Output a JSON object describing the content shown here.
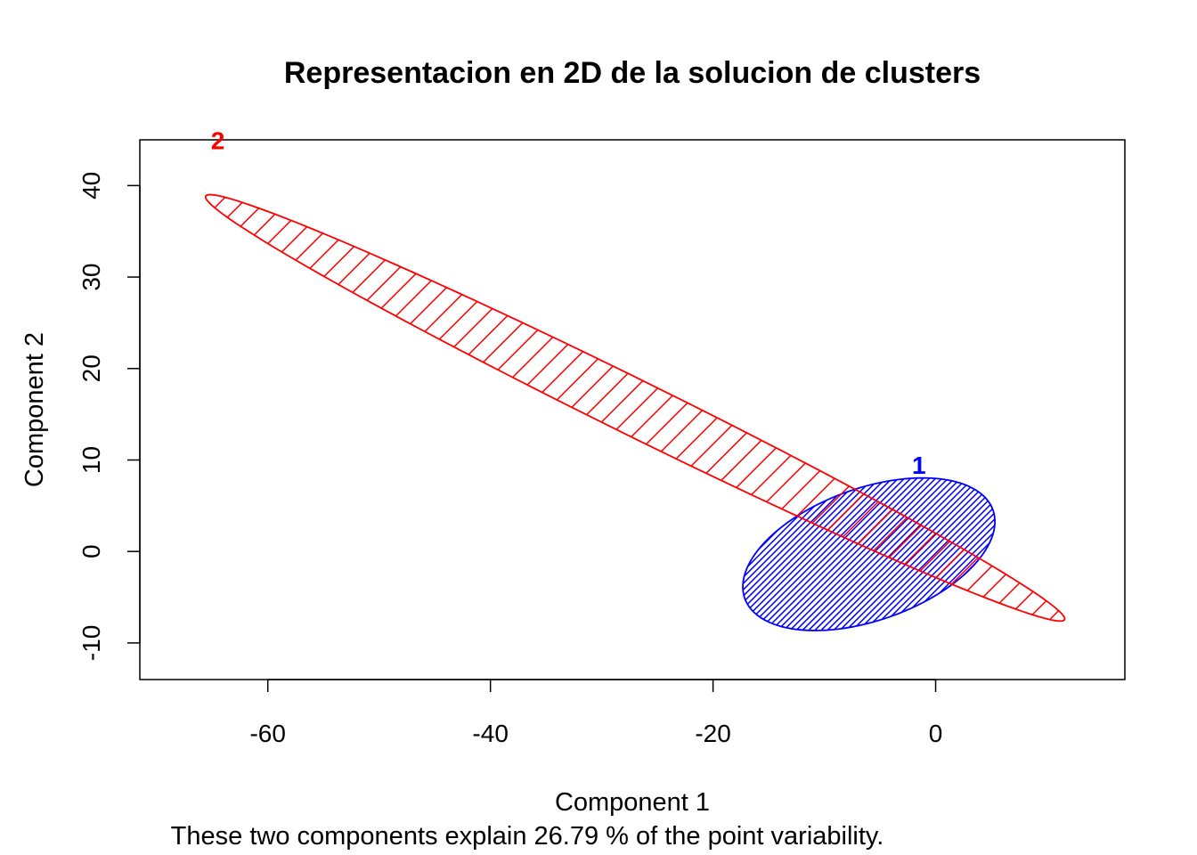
{
  "chart_data": {
    "type": "scatter",
    "title": "Representacion en 2D de la solucion de clusters",
    "xlabel": "Component 1",
    "ylabel": "Component 2",
    "subtitle": "These two components explain 26.79 % of the point variability.",
    "xlim": [
      -71.5,
      17.0
    ],
    "ylim": [
      -14.0,
      45.0
    ],
    "xticks": [
      -60,
      -40,
      -20,
      0
    ],
    "yticks": [
      -10,
      0,
      10,
      20,
      30,
      40
    ],
    "grid": false,
    "clusters": [
      {
        "name": "1",
        "color": "#0000ff",
        "hatch_density": "dense",
        "center": [
          -6.0,
          -0.3
        ],
        "semi_axis_major": 12.2,
        "semi_axis_minor": 7.0,
        "angle_deg": 27,
        "label_position": [
          -1.5,
          8.5
        ]
      },
      {
        "name": "2",
        "color": "#ff0000",
        "hatch_density": "sparse",
        "center": [
          -27.0,
          15.7
        ],
        "semi_axis_major": 45.0,
        "semi_axis_minor": 2.9,
        "angle_deg": -31,
        "label_position": [
          -64.5,
          44.0
        ]
      }
    ]
  }
}
